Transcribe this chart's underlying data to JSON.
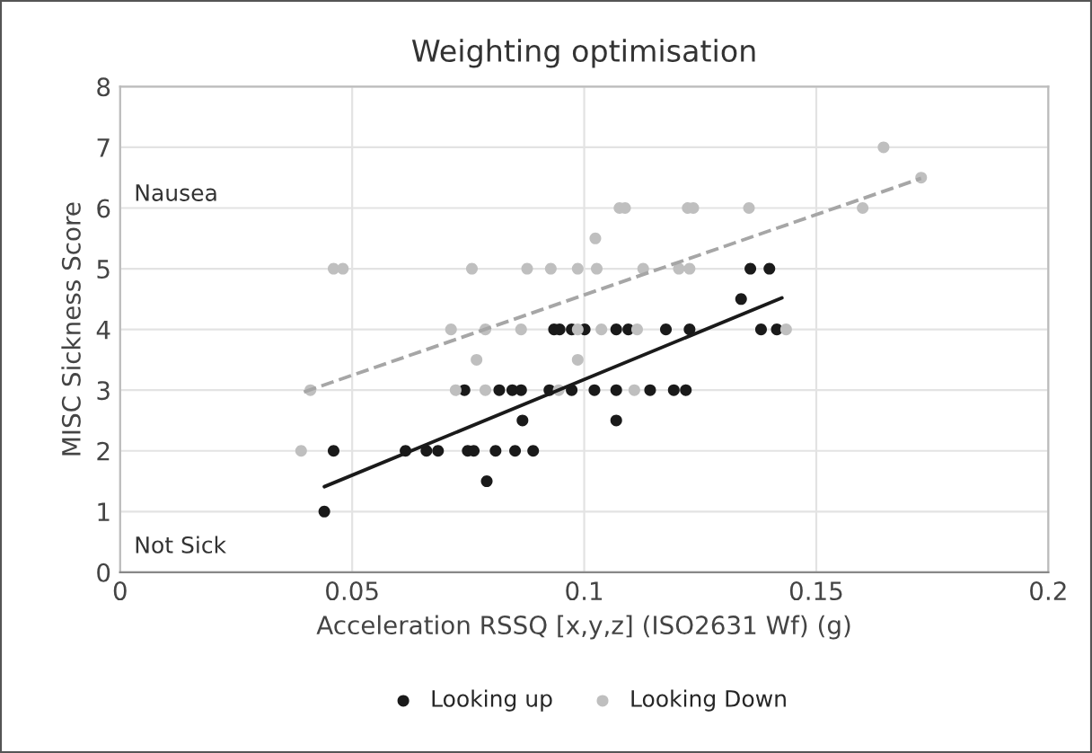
{
  "chart_data": {
    "type": "scatter",
    "title": "Weighting optimisation",
    "xlabel": "Acceleration RSSQ [x,y,z] (ISO2631 Wf) (g)",
    "ylabel": "MISC Sickness Score",
    "xlim": [
      0,
      0.2
    ],
    "xticks": [
      0,
      0.05,
      0.1,
      0.15,
      0.2
    ],
    "ylim": [
      0,
      8
    ],
    "yticks": [
      0,
      1,
      2,
      3,
      4,
      5,
      6,
      7,
      8
    ],
    "grid": true,
    "legend": "bottom",
    "marker": "circle",
    "annotations": [
      "Nausea",
      "Not Sick"
    ],
    "series": [
      {
        "name": "Looking up",
        "color": "#1a1a1a",
        "x": [
          0.044,
          0.046,
          0.0615,
          0.066,
          0.0685,
          0.0749,
          0.0762,
          0.0809,
          0.0851,
          0.089,
          0.079,
          0.0867,
          0.1069,
          0.0742,
          0.0817,
          0.0845,
          0.0864,
          0.0925,
          0.0973,
          0.1022,
          0.1069,
          0.1142,
          0.1193,
          0.1219,
          0.0935,
          0.0947,
          0.0973,
          0.1001,
          0.1069,
          0.1095,
          0.1176,
          0.1227,
          0.1381,
          0.1415,
          0.1338,
          0.1358,
          0.1399
        ],
        "values": [
          1,
          2,
          2,
          2,
          2,
          2,
          2,
          2,
          2,
          2,
          1.5,
          2.5,
          2.5,
          3,
          3,
          3,
          3,
          3,
          3,
          3,
          3,
          3,
          3,
          3,
          4,
          4,
          4,
          4,
          4,
          4,
          4,
          4,
          4,
          4,
          4.5,
          5,
          5
        ]
      },
      {
        "name": "Looking Down",
        "color": "#bfbfbf",
        "x": [
          0.039,
          0.041,
          0.0723,
          0.0787,
          0.0945,
          0.1108,
          0.0768,
          0.0986,
          0.0713,
          0.0787,
          0.0864,
          0.0986,
          0.1037,
          0.1114,
          0.1435,
          0.046,
          0.048,
          0.0758,
          0.0877,
          0.0928,
          0.0986,
          0.1027,
          0.1127,
          0.1204,
          0.1227,
          0.1024,
          0.1076,
          0.1088,
          0.1223,
          0.1235,
          0.1355,
          0.16,
          0.1645,
          0.1726
        ],
        "values": [
          2,
          3,
          3,
          3,
          3,
          3,
          3.5,
          3.5,
          4,
          4,
          4,
          4,
          4,
          4,
          4,
          5,
          5,
          5,
          5,
          5,
          5,
          5,
          5,
          5,
          5,
          5.5,
          6,
          6,
          6,
          6,
          6,
          6,
          7,
          6.5
        ]
      },
      {
        "color": "#1a1a1a",
        "type": "line",
        "marker": "none",
        "line_style": "solid",
        "x": [
          0.044,
          0.1426
        ],
        "values": [
          1.41,
          4.52
        ]
      },
      {
        "color": "#a6a6a6",
        "type": "line",
        "marker": "none",
        "line_style": "dashed",
        "x": [
          0.0396,
          0.1726
        ],
        "values": [
          2.97,
          6.49
        ]
      }
    ]
  }
}
